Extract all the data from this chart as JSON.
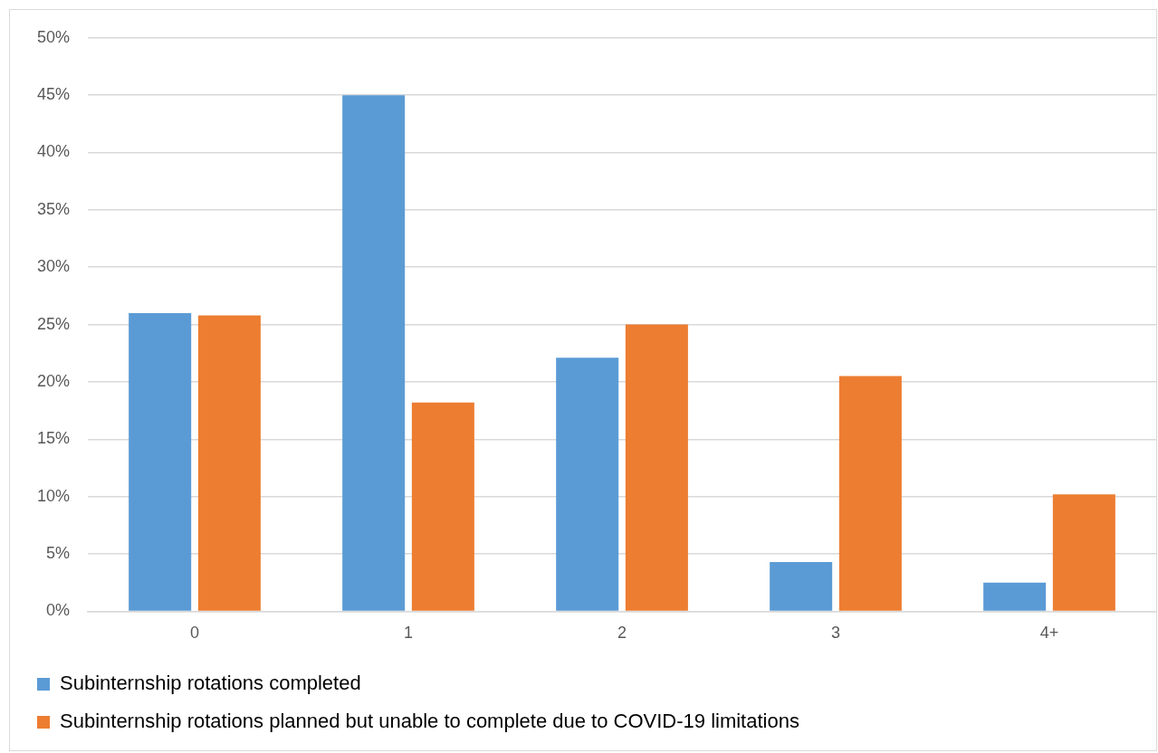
{
  "chart_data": {
    "type": "bar",
    "categories": [
      "0",
      "1",
      "2",
      "3",
      "4+"
    ],
    "series": [
      {
        "name": "Subinternship rotations completed",
        "color": "#5b9bd5",
        "values": [
          26.0,
          45.0,
          22.1,
          4.3,
          2.5
        ]
      },
      {
        "name": "Subinternship rotations planned but unable to complete due to COVID-19 limitations",
        "color": "#ed7d31",
        "values": [
          25.8,
          18.2,
          25.0,
          20.5,
          10.2
        ]
      }
    ],
    "ylim": [
      0,
      50
    ],
    "yticks": [
      {
        "value": 0,
        "label": "0%"
      },
      {
        "value": 5,
        "label": "5%"
      },
      {
        "value": 10,
        "label": "10%"
      },
      {
        "value": 15,
        "label": "15%"
      },
      {
        "value": 20,
        "label": "20%"
      },
      {
        "value": 25,
        "label": "25%"
      },
      {
        "value": 30,
        "label": "30%"
      },
      {
        "value": 35,
        "label": "35%"
      },
      {
        "value": 40,
        "label": "40%"
      },
      {
        "value": 45,
        "label": "45%"
      },
      {
        "value": 50,
        "label": "50%"
      }
    ],
    "grid": "y",
    "legend": "bottom"
  }
}
